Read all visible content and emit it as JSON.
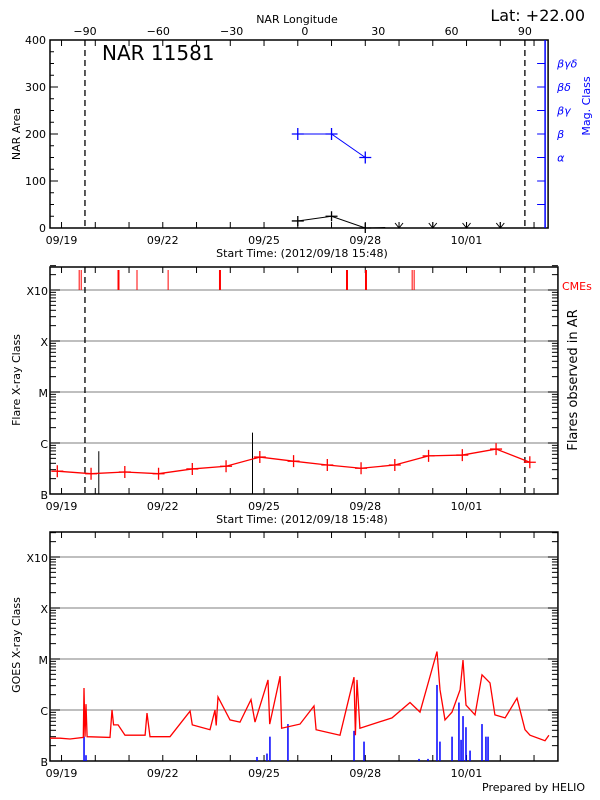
{
  "colors": {
    "area": "#000000",
    "mag_class": "#0000ff",
    "flare": "#ff0000",
    "cme": "#ff0000",
    "goes_long": "#ff0000",
    "goes_short": "#0000ff",
    "grid": "#999999",
    "limb": "#000000"
  },
  "header": {
    "lat_label": "Lat: +22.00",
    "region_label": "NAR 11581",
    "footer": "Prepared by HELIO"
  },
  "chart_data": [
    {
      "type": "line",
      "panel": "top",
      "xlabel": "Start Time: (2012/09/18 15:48)",
      "xlim": [
        "2012-09-18 15:48",
        "2012-10-03 10:00"
      ],
      "xticks": [
        {
          "t": "2012-09-19 00:00",
          "label": "09/19"
        },
        {
          "t": "2012-09-22 00:00",
          "label": "09/22"
        },
        {
          "t": "2012-09-25 00:00",
          "label": "09/25"
        },
        {
          "t": "2012-09-28 00:00",
          "label": "09/28"
        },
        {
          "t": "2012-10-01 00:00",
          "label": "10/01"
        }
      ],
      "top_axis": {
        "label": "NAR Longitude",
        "ticks": [
          "-90",
          "-60",
          "-30",
          "0",
          "30",
          "60",
          "90"
        ],
        "lon_range": [
          -90,
          90
        ],
        "limb_times": [
          "2012-09-19 16:40",
          "2012-10-02 17:30"
        ]
      },
      "ylabel": "NAR Area",
      "ylim": [
        0,
        400
      ],
      "yticks": [
        "0",
        "100",
        "200",
        "300",
        "400"
      ],
      "right_axis": {
        "label": "Mag. Class",
        "range": [
          0,
          8
        ],
        "ticks": [
          {
            "v": 3,
            "label": "α"
          },
          {
            "v": 4,
            "label": "β"
          },
          {
            "v": 5,
            "label": "βγ"
          },
          {
            "v": 6,
            "label": "βδ"
          },
          {
            "v": 7,
            "label": "βγδ"
          }
        ]
      },
      "area_series": {
        "t": [
          "2012-09-26 00:00",
          "2012-09-27 00:00",
          "2012-09-28 00:00",
          "2012-09-29 00:00",
          "2012-09-30 00:00",
          "2012-10-01 00:00",
          "2012-10-02 00:00"
        ],
        "values": [
          15,
          25,
          0,
          0,
          0,
          0,
          0
        ],
        "markers": [
          "plus",
          "plus",
          "plus",
          "arrow-down",
          "arrow-down",
          "arrow-down",
          "arrow-down"
        ]
      },
      "mag_series": {
        "t": [
          "2012-09-26 00:00",
          "2012-09-27 00:00",
          "2012-09-28 00:00"
        ],
        "values": [
          "β",
          "β",
          "α"
        ],
        "levels": [
          4,
          4,
          3
        ]
      }
    },
    {
      "type": "line",
      "panel": "middle",
      "xlabel": "Start Time: (2012/09/18 15:48)",
      "xlim": [
        "2012-09-18 15:48",
        "2012-10-03 17:00"
      ],
      "ylabel": "Flare X-ray Class",
      "right_label": "Flares observed in AR",
      "cme_label": "CMEs",
      "yscale": "log",
      "ylim": [
        1e-07,
        0.003
      ],
      "yticks": [
        {
          "v": 1e-07,
          "label": "B"
        },
        {
          "v": 1e-06,
          "label": "C"
        },
        {
          "v": 1e-05,
          "label": "M"
        },
        {
          "v": 0.0001,
          "label": "X"
        },
        {
          "v": 0.001,
          "label": "X10"
        }
      ],
      "grid": true,
      "background_series": {
        "t": [
          "2012-09-18 21:00",
          "2012-09-19 21:00",
          "2012-09-20 21:00",
          "2012-09-21 21:00",
          "2012-09-22 21:00",
          "2012-09-23 21:00",
          "2012-09-24 21:00",
          "2012-09-25 21:00",
          "2012-09-26 21:00",
          "2012-09-27 21:00",
          "2012-09-28 21:00",
          "2012-09-29 21:00",
          "2012-09-30 21:00",
          "2012-10-01 21:00",
          "2012-10-02 21:00"
        ],
        "values": [
          2.8e-07,
          2.5e-07,
          2.7e-07,
          2.5e-07,
          3.1e-07,
          3.5e-07,
          5.3e-07,
          4.4e-07,
          3.7e-07,
          3.2e-07,
          3.7e-07,
          5.6e-07,
          5.8e-07,
          7.6e-07,
          4.2e-07
        ]
      },
      "flares": [
        {
          "t": "2012-09-20 02:30",
          "v": 6.9e-07
        },
        {
          "t": "2012-09-24 15:48",
          "v": 1.6e-06
        }
      ],
      "cmes": [
        {
          "t": "2012-09-19 12:33",
          "w": 1
        },
        {
          "t": "2012-09-19 14:00",
          "w": 1
        },
        {
          "t": "2012-09-20 16:30",
          "w": 2
        },
        {
          "t": "2012-09-21 05:40",
          "w": 1
        },
        {
          "t": "2012-09-22 03:48",
          "w": 1
        },
        {
          "t": "2012-09-23 16:40",
          "w": 2
        },
        {
          "t": "2012-09-27 11:00",
          "w": 2
        },
        {
          "t": "2012-09-28 00:30",
          "w": 2
        },
        {
          "t": "2012-09-29 09:20",
          "w": 1
        },
        {
          "t": "2012-09-29 10:45",
          "w": 1
        }
      ]
    },
    {
      "type": "line",
      "panel": "bottom",
      "xlim": [
        "2012-09-18 15:48",
        "2012-10-03 17:00"
      ],
      "ylabel": "GOES X-ray Class",
      "yscale": "log",
      "ylim": [
        1e-07,
        0.003
      ],
      "yticks": [
        {
          "v": 1e-07,
          "label": "B"
        },
        {
          "v": 1e-06,
          "label": "C"
        },
        {
          "v": 1e-05,
          "label": "M"
        },
        {
          "v": 0.0001,
          "label": "X"
        },
        {
          "v": 0.001,
          "label": "X10"
        }
      ],
      "grid": true,
      "long_channel": [
        [
          "2012-09-18 15:48",
          2.8e-07
        ],
        [
          "2012-09-18 22:55",
          2.8e-07
        ],
        [
          "2012-09-19 06:00",
          2.7e-07
        ],
        [
          "2012-09-19 15:30",
          2.9e-07
        ],
        [
          "2012-09-19 16:00",
          2.7e-06
        ],
        [
          "2012-09-19 16:40",
          3e-07
        ],
        [
          "2012-09-19 17:24",
          1.3e-06
        ],
        [
          "2012-09-19 18:10",
          3e-07
        ],
        [
          "2012-09-20 10:30",
          2.9e-07
        ],
        [
          "2012-09-20 11:54",
          1e-06
        ],
        [
          "2012-09-20 13:00",
          5.1e-07
        ],
        [
          "2012-09-20 16:12",
          5.1e-07
        ],
        [
          "2012-09-20 21:06",
          3.2e-07
        ],
        [
          "2012-09-21 11:24",
          3.2e-07
        ],
        [
          "2012-09-21 12:48",
          8.7e-07
        ],
        [
          "2012-09-21 14:54",
          3e-07
        ],
        [
          "2012-09-22 05:06",
          3e-07
        ],
        [
          "2012-09-22 19:24",
          9.5e-07
        ],
        [
          "2012-09-22 21:00",
          5.1e-07
        ],
        [
          "2012-09-23 09:36",
          4.1e-07
        ],
        [
          "2012-09-23 13:06",
          1e-06
        ],
        [
          "2012-09-23 14:00",
          5e-07
        ],
        [
          "2012-09-23 15:18",
          1.8e-06
        ],
        [
          "2012-09-23 23:48",
          6.4e-07
        ],
        [
          "2012-09-24 06:54",
          5.8e-07
        ],
        [
          "2012-09-24 14:42",
          1.6e-06
        ],
        [
          "2012-09-24 17:36",
          5.8e-07
        ],
        [
          "2012-09-25 02:48",
          3.9e-06
        ],
        [
          "2012-09-25 04:00",
          5.3e-07
        ],
        [
          "2012-09-25 11:24",
          4.6e-06
        ],
        [
          "2012-09-25 12:30",
          4.4e-07
        ],
        [
          "2012-09-26 01:36",
          5.3e-07
        ],
        [
          "2012-09-26 11:30",
          1.2e-06
        ],
        [
          "2012-09-26 13:00",
          4.1e-07
        ],
        [
          "2012-09-27 06:00",
          3.2e-07
        ],
        [
          "2012-09-27 16:00",
          4.4e-06
        ],
        [
          "2012-09-27 17:00",
          3.2e-07
        ],
        [
          "2012-09-27 18:06",
          3.9e-06
        ],
        [
          "2012-09-27 20:12",
          4.4e-07
        ],
        [
          "2012-09-28 19:00",
          7e-07
        ],
        [
          "2012-09-29 07:48",
          1.4e-06
        ],
        [
          "2012-09-29 14:54",
          9.1e-07
        ],
        [
          "2012-09-30 03:00",
          1.4e-05
        ],
        [
          "2012-09-30 05:06",
          2.5e-06
        ],
        [
          "2012-09-30 08:42",
          6.4e-07
        ],
        [
          "2012-09-30 13:42",
          9.1e-07
        ],
        [
          "2012-09-30 19:24",
          2.5e-06
        ],
        [
          "2012-09-30 21:30",
          9.5e-06
        ],
        [
          "2012-09-30 23:36",
          1.25e-06
        ],
        [
          "2012-10-01 06:00",
          8e-07
        ],
        [
          "2012-10-01 11:00",
          4.9e-06
        ],
        [
          "2012-10-01 16:42",
          3.4e-06
        ],
        [
          "2012-10-01 20:12",
          8e-07
        ],
        [
          "2012-10-02 03:24",
          7e-07
        ],
        [
          "2012-10-02 11:54",
          1.7e-06
        ],
        [
          "2012-10-02 17:36",
          4.1e-07
        ],
        [
          "2012-10-02 21:06",
          3.2e-07
        ],
        [
          "2012-10-03 07:48",
          2.5e-07
        ],
        [
          "2012-10-03 10:36",
          3.2e-07
        ]
      ],
      "short_channel_spikes": [
        [
          "2012-09-19 16:00",
          3e-07
        ],
        [
          "2012-09-19 17:24",
          1.3e-07
        ],
        [
          "2012-09-24 19:00",
          1.2e-07
        ],
        [
          "2012-09-25 02:06",
          1.4e-07
        ],
        [
          "2012-09-25 04:12",
          3e-07
        ],
        [
          "2012-09-25 17:00",
          5.3e-07
        ],
        [
          "2012-09-27 16:00",
          3.9e-07
        ],
        [
          "2012-09-27 23:06",
          2.4e-07
        ],
        [
          "2012-09-29 14:12",
          1.1e-07
        ],
        [
          "2012-09-29 20:36",
          1.1e-07
        ],
        [
          "2012-09-30 03:00",
          3.1e-06
        ],
        [
          "2012-09-30 05:06",
          2.4e-07
        ],
        [
          "2012-09-30 13:42",
          3e-07
        ],
        [
          "2012-09-30 18:36",
          1.4e-06
        ],
        [
          "2012-09-30 20:06",
          2.6e-07
        ],
        [
          "2012-09-30 21:30",
          7.6e-07
        ],
        [
          "2012-09-30 23:36",
          4.6e-07
        ],
        [
          "2012-10-01 02:30",
          1.6e-07
        ],
        [
          "2012-10-01 11:00",
          5.3e-07
        ],
        [
          "2012-10-01 13:48",
          3e-07
        ],
        [
          "2012-10-01 15:18",
          3e-07
        ]
      ]
    }
  ]
}
